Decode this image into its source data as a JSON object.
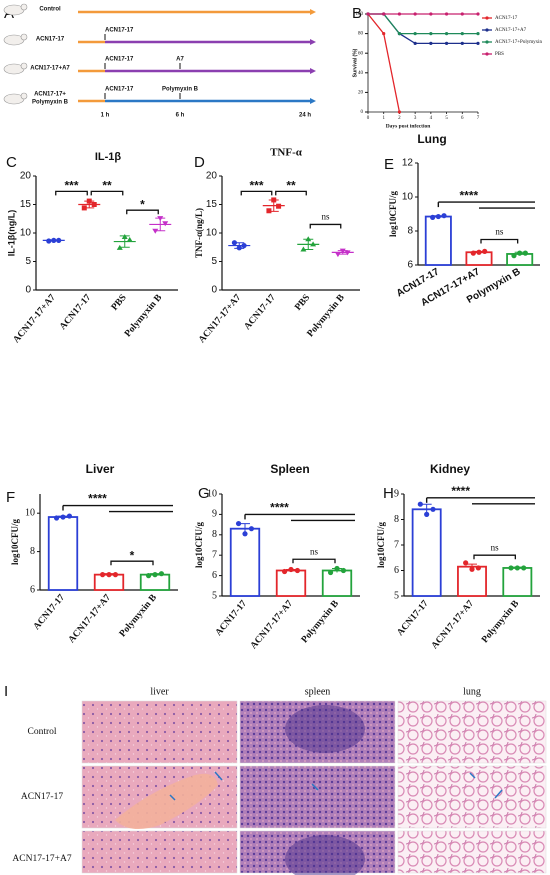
{
  "timeline": {
    "label": "A",
    "rows": [
      {
        "name": [
          "Control"
        ],
        "events": []
      },
      {
        "name": [
          "ACN17-17"
        ],
        "events": [
          "ACN17-17"
        ]
      },
      {
        "name": [
          "ACN17-17+A7"
        ],
        "events": [
          "ACN17-17",
          "A7"
        ]
      },
      {
        "name": [
          "ACN17-17+",
          "Polymyxin B"
        ],
        "events": [
          "ACN17-17",
          "Polymyxin B"
        ]
      }
    ],
    "times": [
      "1 h",
      "6 h",
      "24 h"
    ]
  },
  "chart_data": [
    {
      "type": "line",
      "label": "B",
      "xlabel": "Days post infection",
      "ylabel": "Survival (%)",
      "x": [
        0,
        1,
        2,
        3,
        4,
        5,
        6,
        7
      ],
      "xlim": [
        0,
        7
      ],
      "xticks": [
        0,
        1,
        2,
        3,
        4,
        5,
        6,
        7
      ],
      "ylim": [
        0,
        100
      ],
      "yticks": [
        0,
        20,
        40,
        60,
        80,
        100
      ],
      "series": [
        {
          "name": "ACN17-17",
          "color": "#e3262b",
          "values": [
            100,
            80,
            0,
            null,
            null,
            null,
            null,
            null
          ]
        },
        {
          "name": "ACN17-17+A7",
          "color": "#1d2f8c",
          "values": [
            100,
            100,
            80,
            70,
            70,
            70,
            70,
            70
          ]
        },
        {
          "name": "ACN17-17+Polymyxin",
          "color": "#1f8a5a",
          "values": [
            100,
            100,
            80,
            80,
            80,
            80,
            80,
            80
          ]
        },
        {
          "name": "PBS",
          "color": "#c8206e",
          "values": [
            100,
            100,
            100,
            100,
            100,
            100,
            100,
            100
          ]
        }
      ],
      "legend": "right"
    },
    {
      "type": "dot",
      "label": "C",
      "title": "IL-1β",
      "ylabel": "IL-1β(ng/L)",
      "categories": [
        "ACN17-17+A7",
        "ACN17-17",
        "PBS",
        "Polymyxin B"
      ],
      "colors": [
        "#2b3fd6",
        "#e3262b",
        "#23a33c",
        "#c530c9"
      ],
      "points": [
        [
          8.6,
          8.7,
          8.7
        ],
        [
          14.4,
          15.6,
          15.0
        ],
        [
          7.4,
          9.3,
          8.8
        ],
        [
          10.4,
          12.6,
          11.7
        ]
      ],
      "means": [
        8.7,
        15.0,
        8.5,
        11.5
      ],
      "sd": [
        0.1,
        0.6,
        1.0,
        1.1
      ],
      "ylim": [
        0,
        20
      ],
      "yticks": [
        0,
        5,
        10,
        15,
        20
      ],
      "annotations": [
        "***",
        "**",
        "*"
      ]
    },
    {
      "type": "dot",
      "label": "D",
      "title": "TNF-α",
      "ylabel": "TNF-α(ng/L)",
      "categories": [
        "ACN17-17+A7",
        "ACN17-17",
        "PBS",
        "Polymyxin B"
      ],
      "colors": [
        "#2b3fd6",
        "#e3262b",
        "#23a33c",
        "#c530c9"
      ],
      "points": [
        [
          8.3,
          7.4,
          7.8
        ],
        [
          13.9,
          15.8,
          14.7
        ],
        [
          7.1,
          8.9,
          8.0
        ],
        [
          6.3,
          6.9,
          6.6
        ]
      ],
      "means": [
        7.8,
        14.8,
        8.0,
        6.6
      ],
      "sd": [
        0.5,
        1.0,
        0.9,
        0.3
      ],
      "ylim": [
        0,
        20
      ],
      "yticks": [
        0,
        5,
        10,
        15,
        20
      ],
      "annotations": [
        "***",
        "**",
        "ns"
      ]
    },
    {
      "type": "bar",
      "label": "E",
      "title": "Lung",
      "ylabel": "log10CFU/g",
      "categories": [
        "ACN17-17",
        "ACN17-17+A7",
        "Polymyxin B"
      ],
      "colors": [
        "#2b3fd6",
        "#e3262b",
        "#23a33c"
      ],
      "values": [
        8.85,
        6.75,
        6.65
      ],
      "sd": [
        0.05,
        0.05,
        0.1
      ],
      "points": [
        [
          8.8,
          8.85,
          8.9
        ],
        [
          6.7,
          6.75,
          6.8
        ],
        [
          6.55,
          6.7,
          6.7
        ]
      ],
      "ylim": [
        6,
        12
      ],
      "yticks": [
        6,
        8,
        10,
        12
      ],
      "annotations": [
        "****",
        "ns"
      ]
    },
    {
      "type": "bar",
      "label": "F",
      "title": "Liver",
      "ylabel": "log10CFU/g",
      "categories": [
        "ACN17-17",
        "ACN17-17+A7",
        "Polymyxin B"
      ],
      "colors": [
        "#2b3fd6",
        "#e3262b",
        "#23a33c"
      ],
      "values": [
        9.8,
        6.8,
        6.8
      ],
      "sd": [
        0.05,
        0.05,
        0.05
      ],
      "points": [
        [
          9.75,
          9.8,
          9.85
        ],
        [
          6.8,
          6.8,
          6.8
        ],
        [
          6.75,
          6.8,
          6.85
        ]
      ],
      "ylim": [
        6,
        11
      ],
      "yticks": [
        6,
        8,
        10
      ],
      "annotations": [
        "****",
        "*"
      ]
    },
    {
      "type": "bar",
      "label": "G",
      "title": "Spleen",
      "ylabel": "log10CFU/g",
      "categories": [
        "ACN17-17",
        "ACN17-17+A7",
        "Polymyxin B"
      ],
      "colors": [
        "#2b3fd6",
        "#e3262b",
        "#23a33c"
      ],
      "values": [
        8.3,
        6.25,
        6.25
      ],
      "sd": [
        0.25,
        0.05,
        0.1
      ],
      "points": [
        [
          8.55,
          8.05,
          8.3
        ],
        [
          6.2,
          6.3,
          6.25
        ],
        [
          6.15,
          6.35,
          6.25
        ]
      ],
      "ylim": [
        5,
        10
      ],
      "yticks": [
        5,
        6,
        7,
        8,
        9,
        10
      ],
      "annotations": [
        "****",
        "ns"
      ]
    },
    {
      "type": "bar",
      "label": "H",
      "title": "Kidney",
      "ylabel": "log10CFU/g",
      "categories": [
        "ACN17-17",
        "ACN17-17+A7",
        "Polymyxin B"
      ],
      "colors": [
        "#2b3fd6",
        "#e3262b",
        "#23a33c"
      ],
      "values": [
        8.4,
        6.15,
        6.1
      ],
      "sd": [
        0.2,
        0.1,
        0.03
      ],
      "points": [
        [
          8.6,
          8.2,
          8.4
        ],
        [
          6.3,
          6.05,
          6.1
        ],
        [
          6.1,
          6.1,
          6.1
        ]
      ],
      "ylim": [
        5,
        9
      ],
      "yticks": [
        5,
        6,
        7,
        8,
        9
      ],
      "annotations": [
        "****",
        "ns"
      ]
    }
  ],
  "histology": {
    "label": "I",
    "columns": [
      "liver",
      "spleen",
      "lung"
    ],
    "rows": [
      "Control",
      "ACN17-17",
      "ACN17-17+A7"
    ]
  }
}
